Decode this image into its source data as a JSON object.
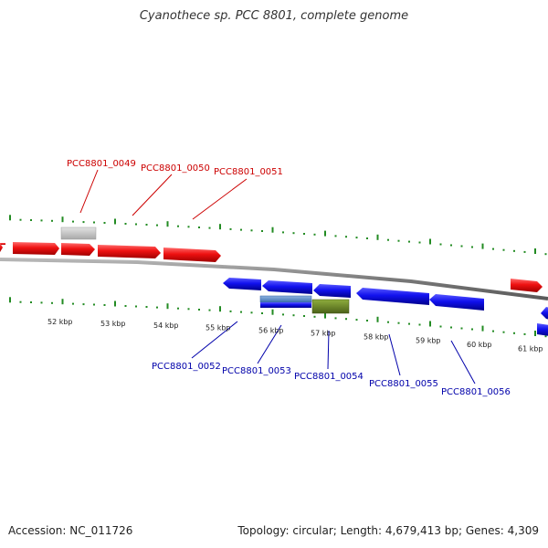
{
  "title": "Cyanothece sp. PCC 8801, complete genome",
  "footer": {
    "accession": "Accession: NC_011726",
    "summary": "Topology: circular; Length: 4,679,413 bp; Genes: 4,309"
  },
  "colors": {
    "forward_gene": "#ee1111",
    "reverse_gene": "#1111ee",
    "forward_label": "#cc0000",
    "reverse_label": "#0000aa",
    "rna_gray": "#c0c0c0",
    "blue_rna": "#5588cc",
    "olive_rna": "#6f8a2a",
    "tick": "#228b22",
    "backbone": "#888888"
  },
  "scale": {
    "ticks": [
      "52 kbp",
      "53 kbp",
      "54 kbp",
      "55 kbp",
      "56 kbp",
      "57 kbp",
      "58 kbp",
      "59 kbp",
      "60 kbp",
      "61 kbp"
    ]
  },
  "forward_labels": [
    "PCC8801_0049",
    "PCC8801_0050",
    "PCC8801_0051"
  ],
  "reverse_labels": [
    "PCC8801_0052",
    "PCC8801_0053",
    "PCC8801_0054",
    "PCC8801_0055",
    "PCC8801_0056"
  ]
}
